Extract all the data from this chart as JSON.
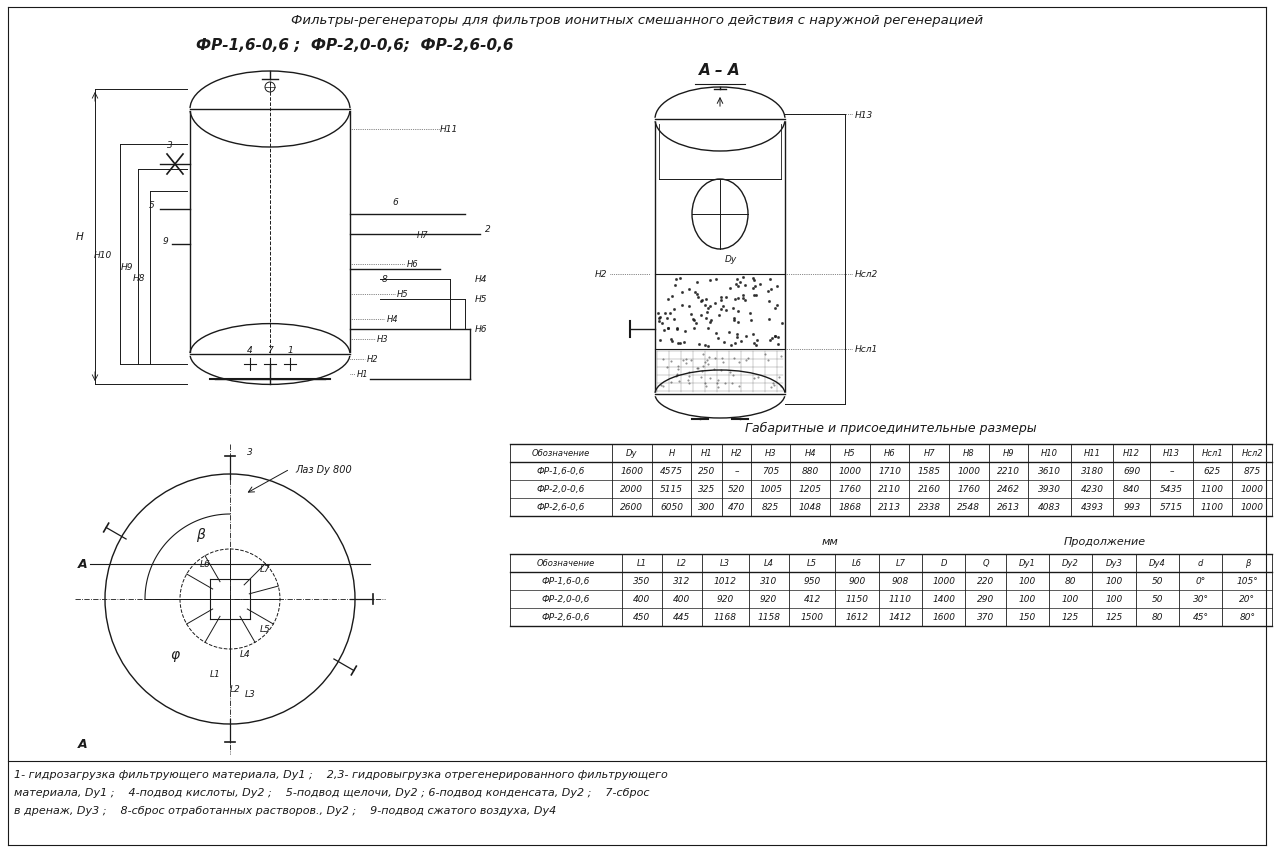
{
  "title_line1": "Фильтры-регенераторы для фильтров ионитных смешанного действия с наружной регенерацией",
  "title_line2": "ФР-1,6-0,6 ;  ФР-2,0-0,6;  ФР-2,6-0,6",
  "table1_title": "Габаритные и присоединительные размеры",
  "table1_unit": "мм",
  "table1_headers": [
    "Обозначение",
    "Dy",
    "H",
    "H1",
    "H2",
    "H3",
    "H4",
    "H5",
    "H6",
    "H7",
    "H8",
    "H9",
    "H10",
    "H11",
    "H12",
    "H13",
    "Hсл1",
    "Hсл2"
  ],
  "table1_rows": [
    [
      "ФР-1,6-0,6",
      "1600",
      "4575",
      "250",
      "–",
      "705",
      "880",
      "1000",
      "1710",
      "1585",
      "1000",
      "2210",
      "3610",
      "3180",
      "690",
      "–",
      "625",
      "875"
    ],
    [
      "ФР-2,0-0,6",
      "2000",
      "5115",
      "325",
      "520",
      "1005",
      "1205",
      "1760",
      "2110",
      "2160",
      "1760",
      "2462",
      "3930",
      "4230",
      "840",
      "5435",
      "1100",
      "1000"
    ],
    [
      "ФР-2,6-0,6",
      "2600",
      "6050",
      "300",
      "470",
      "825",
      "1048",
      "1868",
      "2113",
      "2338",
      "2548",
      "2613",
      "4083",
      "4393",
      "993",
      "5715",
      "1100",
      "1000"
    ]
  ],
  "table2_note1": "мм",
  "table2_note2": "Продолжение",
  "table2_headers": [
    "Обозначение",
    "L1",
    "L2",
    "L3",
    "L4",
    "L5",
    "L6",
    "L7",
    "D",
    "Q",
    "Dy1",
    "Dy2",
    "Dy3",
    "Dy4",
    "d",
    "β"
  ],
  "table2_rows": [
    [
      "ФР-1,6-0,6",
      "350",
      "312",
      "1012",
      "310",
      "950",
      "900",
      "908",
      "1000",
      "220",
      "100",
      "80",
      "100",
      "50",
      "0°",
      "105°"
    ],
    [
      "ФР-2,0-0,6",
      "400",
      "400",
      "920",
      "920",
      "412",
      "1150",
      "1110",
      "1400",
      "290",
      "100",
      "100",
      "100",
      "50",
      "30°",
      "20°"
    ],
    [
      "ФР-2,6-0,6",
      "450",
      "445",
      "1168",
      "1158",
      "1500",
      "1612",
      "1412",
      "1600",
      "370",
      "150",
      "125",
      "125",
      "80",
      "45°",
      "80°"
    ]
  ],
  "legend_line1": "1- гидрозагрузка фильтрующего материала, Dy1 ;    2,3- гидровыгрузка отрегенерированного фильтрующего",
  "legend_line2": "материала, Dy1 ;    4-подвод кислоты, Dy2 ;    5-подвод щелочи, Dy2 ; 6-подвод конденсата, Dy2 ;    7-сброс",
  "legend_line3": "в дренаж, Dy3 ;    8-сброс отработанных растворов., Dy2 ;    9-подвод сжатого воздуха, Dy4",
  "section_label": "А – А",
  "bg_color": "#ffffff",
  "line_color": "#1a1a1a"
}
